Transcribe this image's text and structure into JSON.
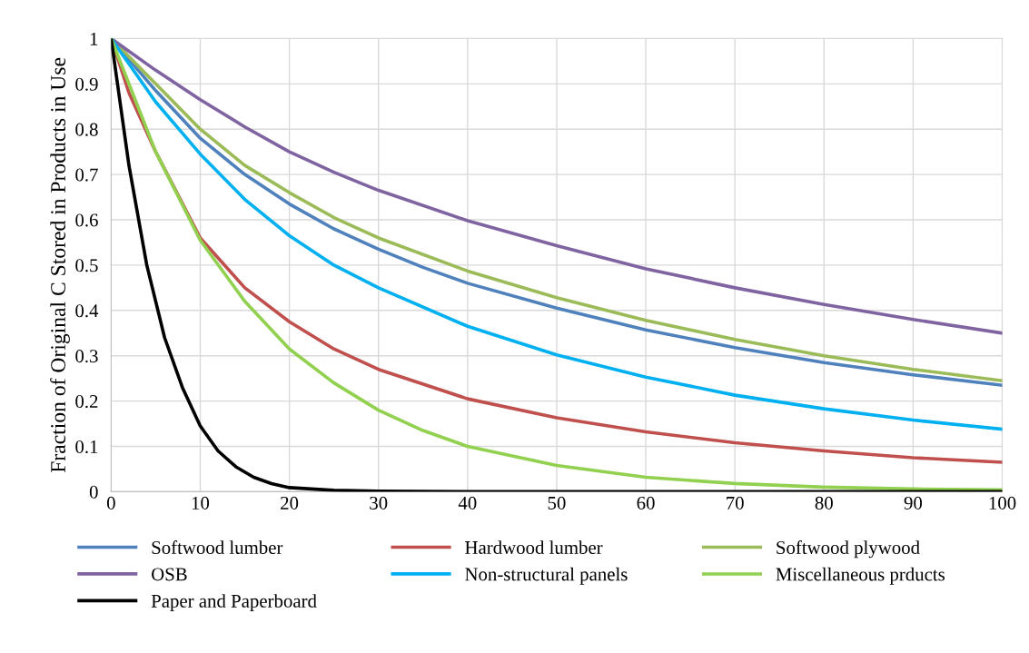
{
  "chart_data": {
    "type": "line",
    "ylabel": "Fraction of Original C Stored in Products in Use",
    "xlim": [
      0,
      100
    ],
    "xticks": [
      0,
      10,
      20,
      30,
      40,
      50,
      60,
      70,
      80,
      90,
      100
    ],
    "ylim": [
      0,
      1
    ],
    "yticks": [
      0,
      0.1,
      0.2,
      0.3,
      0.4,
      0.5,
      0.6,
      0.7,
      0.8,
      0.9,
      1
    ],
    "grid": true,
    "legend": "bottom",
    "marker": "none",
    "line_style": "solid",
    "series": [
      {
        "name": "Softwood lumber",
        "color": "#4f81bd",
        "x": [
          0,
          5,
          10,
          15,
          20,
          25,
          30,
          35,
          40,
          50,
          60,
          70,
          80,
          90,
          100
        ],
        "values": [
          1,
          0.885,
          0.78,
          0.7,
          0.635,
          0.58,
          0.535,
          0.495,
          0.46,
          0.405,
          0.357,
          0.318,
          0.285,
          0.258,
          0.235
        ]
      },
      {
        "name": "Hardwood lumber",
        "color": "#c0504d",
        "x": [
          0,
          2,
          5,
          10,
          15,
          20,
          25,
          30,
          40,
          50,
          60,
          70,
          80,
          90,
          100
        ],
        "values": [
          1,
          0.88,
          0.75,
          0.56,
          0.45,
          0.375,
          0.315,
          0.27,
          0.205,
          0.163,
          0.132,
          0.108,
          0.09,
          0.075,
          0.065
        ]
      },
      {
        "name": "Softwood plywood",
        "color": "#9bbb59",
        "x": [
          0,
          5,
          10,
          15,
          20,
          25,
          30,
          40,
          50,
          60,
          70,
          80,
          90,
          100
        ],
        "values": [
          1,
          0.9,
          0.8,
          0.72,
          0.66,
          0.605,
          0.56,
          0.487,
          0.428,
          0.378,
          0.336,
          0.3,
          0.27,
          0.245
        ]
      },
      {
        "name": "OSB",
        "color": "#8064a2",
        "x": [
          0,
          5,
          10,
          15,
          20,
          25,
          30,
          40,
          50,
          60,
          70,
          80,
          90,
          100
        ],
        "values": [
          1,
          0.93,
          0.865,
          0.805,
          0.75,
          0.705,
          0.665,
          0.598,
          0.543,
          0.492,
          0.45,
          0.413,
          0.38,
          0.35
        ]
      },
      {
        "name": "Non-structural panels",
        "color": "#00b0f0",
        "x": [
          0,
          5,
          10,
          15,
          20,
          25,
          30,
          40,
          50,
          60,
          70,
          80,
          90,
          100
        ],
        "values": [
          1,
          0.86,
          0.745,
          0.645,
          0.565,
          0.5,
          0.45,
          0.365,
          0.302,
          0.253,
          0.213,
          0.183,
          0.158,
          0.138
        ]
      },
      {
        "name": "Miscellaneous prducts",
        "color": "#92d050",
        "x": [
          0,
          5,
          10,
          15,
          20,
          25,
          30,
          35,
          40,
          50,
          60,
          70,
          80,
          90,
          100
        ],
        "values": [
          1,
          0.75,
          0.555,
          0.42,
          0.315,
          0.24,
          0.18,
          0.135,
          0.1,
          0.058,
          0.032,
          0.018,
          0.01,
          0.006,
          0.004
        ]
      },
      {
        "name": "Paper and Paperboard",
        "color": "#000000",
        "x": [
          0,
          2,
          4,
          6,
          8,
          10,
          12,
          14,
          16,
          18,
          20,
          25,
          30,
          40,
          100
        ],
        "values": [
          1,
          0.72,
          0.5,
          0.34,
          0.23,
          0.145,
          0.09,
          0.055,
          0.032,
          0.018,
          0.009,
          0.003,
          0.001,
          0,
          0
        ]
      }
    ]
  }
}
